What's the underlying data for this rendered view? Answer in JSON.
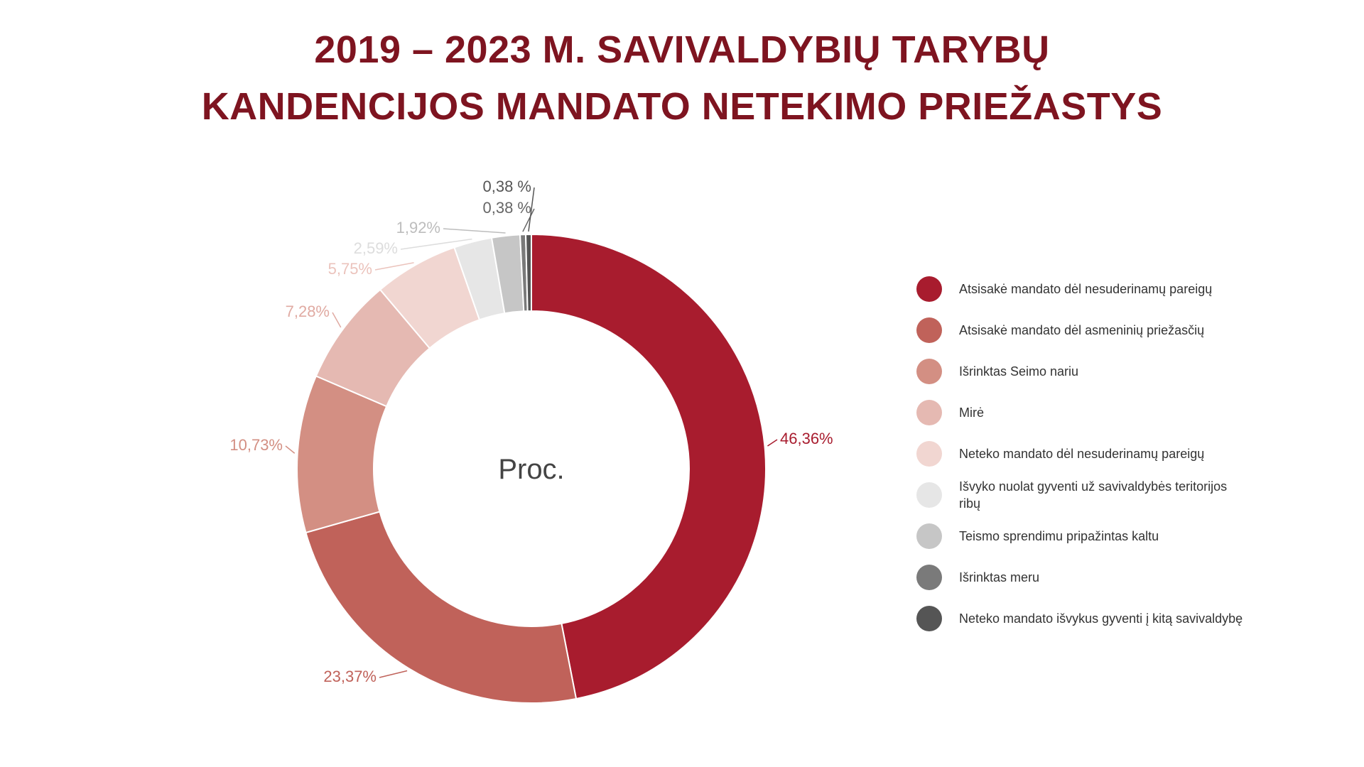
{
  "title": {
    "line1": "2019 – 2023 M. SAVIVALDYBIŲ TARYBŲ",
    "line2": "KANDENCIJOS MANDATO NETEKIMO PRIEŽASTYS"
  },
  "chart_data": {
    "type": "pie",
    "style": "donut",
    "center_label": "Proc.",
    "legend_position": "right",
    "slices": [
      {
        "name": "Atsisakė mandato dėl nesuderinamų pareigų",
        "value": 46.36,
        "label": "46,36%",
        "color": "#a81c2e",
        "label_color": "#a81c2e"
      },
      {
        "name": "Atsisakė mandato dėl asmeninių priežasčių",
        "value": 23.37,
        "label": "23,37%",
        "color": "#c0625a",
        "label_color": "#c0625a"
      },
      {
        "name": "Išrinktas Seimo nariu",
        "value": 10.73,
        "label": "10,73%",
        "color": "#d38f83",
        "label_color": "#d38f83"
      },
      {
        "name": "Mirė",
        "value": 7.28,
        "label": "7,28%",
        "color": "#e5b9b2",
        "label_color": "#e0aaa2"
      },
      {
        "name": "Neteko mandato dėl nesuderinamų pareigų",
        "value": 5.75,
        "label": "5,75%",
        "color": "#f1d6d1",
        "label_color": "#ebc3bc"
      },
      {
        "name": "Išvyko nuolat gyventi už savivaldybės teritorijos ribų",
        "value": 2.59,
        "label": "2,59%",
        "color": "#e6e6e6",
        "label_color": "#dddddd"
      },
      {
        "name": "Teismo sprendimu pripažintas kaltu",
        "value": 1.92,
        "label": "1,92%",
        "color": "#c6c6c6",
        "label_color": "#bdbdbd"
      },
      {
        "name": "Išrinktas meru",
        "value": 0.38,
        "label": "0,38 %",
        "color": "#7a7a7a",
        "label_color": "#666666"
      },
      {
        "name": "Neteko mandato išvykus gyventi į kitą savivaldybę",
        "value": 0.38,
        "label": "0,38 %",
        "color": "#555555",
        "label_color": "#555555"
      }
    ]
  }
}
